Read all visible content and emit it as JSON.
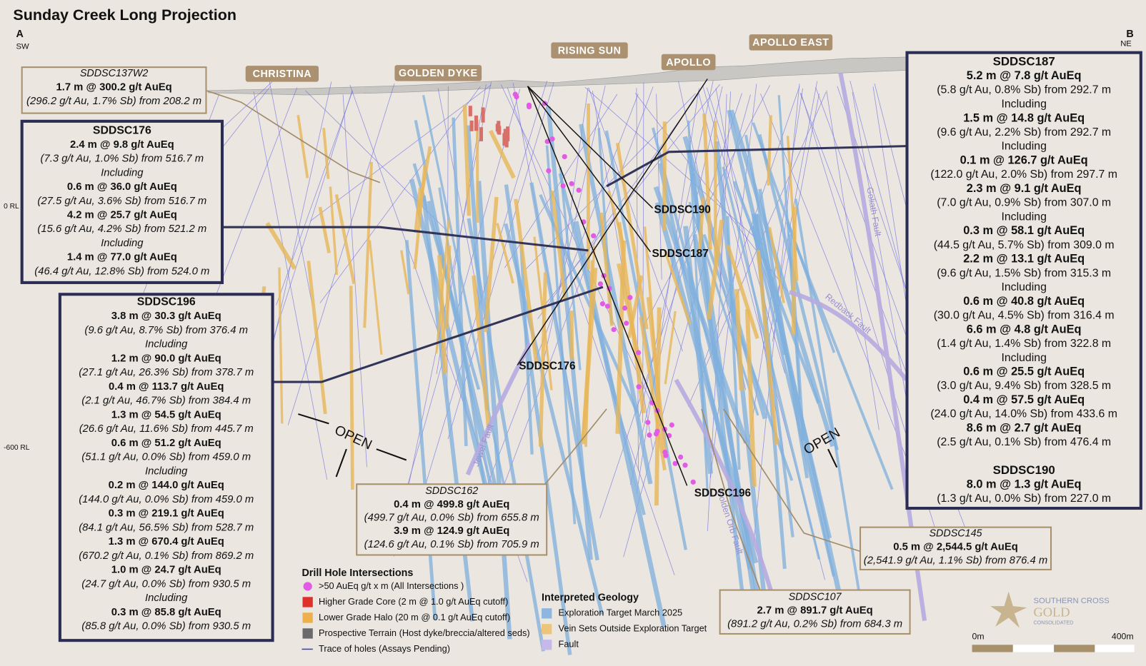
{
  "title": "Sunday Creek Long Projection",
  "section": {
    "start": "A",
    "start_dir": "SW",
    "end": "B",
    "end_dir": "NE"
  },
  "rl_labels": [
    "0 RL",
    "-600 RL"
  ],
  "prospects": [
    "CHRISTINA",
    "GOLDEN DYKE",
    "RISING SUN",
    "APOLLO",
    "APOLLO EAST"
  ],
  "hole_labels": [
    "SDDSC190",
    "SDDSC187",
    "SDDSC176",
    "SDDSC196"
  ],
  "faults": [
    "Goliath Fault",
    "Redback Fault",
    "Jewel Fault",
    "Golden Orb Fault"
  ],
  "open_labels": [
    "OPEN",
    "OPEN"
  ],
  "boxes": [
    {
      "entries": [
        {
          "hole": "SDDSC137W2",
          "rows": [
            {
              "interval": "1.7 m @ 300.2 g/t AuEq",
              "detail": "(296.2 g/t Au, 1.7% Sb) from 208.2 m"
            }
          ]
        }
      ]
    },
    {
      "entries": [
        {
          "hole": "SDDSC176",
          "rows": [
            {
              "interval": "2.4 m @ 9.8 g/t AuEq",
              "detail": "(7.3 g/t Au, 1.0% Sb) from 516.7 m"
            },
            {
              "note": "Including"
            },
            {
              "interval": "0.6 m @ 36.0 g/t AuEq",
              "detail": "(27.5 g/t Au, 3.6% Sb) from 516.7 m"
            },
            {
              "interval": "4.2 m @ 25.7 g/t AuEq",
              "detail": "(15.6 g/t Au, 4.2% Sb) from 521.2 m"
            },
            {
              "note": "Including"
            },
            {
              "interval": "1.4 m @ 77.0 g/t AuEq",
              "detail": "(46.4 g/t Au, 12.8% Sb) from 524.0 m"
            }
          ]
        }
      ]
    },
    {
      "entries": [
        {
          "hole": "SDDSC196",
          "rows": [
            {
              "interval": "3.8 m @ 30.3 g/t AuEq",
              "detail": "(9.6 g/t Au, 8.7% Sb) from 376.4 m"
            },
            {
              "note": "Including"
            },
            {
              "interval": "1.2 m @ 90.0 g/t AuEq",
              "detail": "(27.1 g/t Au, 26.3% Sb) from 378.7 m"
            },
            {
              "interval": "0.4 m @ 113.7 g/t AuEq",
              "detail": "(2.1 g/t Au, 46.7% Sb) from 384.4 m"
            },
            {
              "interval": "1.3 m @ 54.5 g/t AuEq",
              "detail": "(26.6 g/t Au, 11.6% Sb) from 445.7 m"
            },
            {
              "interval": "0.6 m @ 51.2 g/t AuEq",
              "detail": "(51.1 g/t Au, 0.0% Sb) from 459.0 m"
            },
            {
              "note": "Including"
            },
            {
              "interval": "0.2 m @ 144.0 g/t AuEq",
              "detail": "(144.0 g/t Au, 0.0% Sb) from 459.0 m"
            },
            {
              "interval": "0.3 m @ 219.1 g/t AuEq",
              "detail": "(84.1 g/t Au, 56.5% Sb) from 528.7 m"
            },
            {
              "interval": "1.3 m @ 670.4 g/t AuEq",
              "detail": "(670.2 g/t Au, 0.1% Sb) from 869.2 m"
            },
            {
              "interval": "1.0 m @ 24.7 g/t AuEq",
              "detail": "(24.7 g/t Au, 0.0% Sb) from 930.5 m"
            },
            {
              "note": "Including"
            },
            {
              "interval": "0.3 m @ 85.8 g/t AuEq",
              "detail": "(85.8 g/t Au, 0.0% Sb) from 930.5 m"
            }
          ]
        }
      ]
    },
    {
      "entries": [
        {
          "hole": "SDDSC162",
          "rows": [
            {
              "interval": "0.4 m @ 499.8 g/t AuEq",
              "detail": "(499.7 g/t Au, 0.0% Sb) from 655.8 m"
            },
            {
              "interval": "3.9 m @ 124.9 g/t AuEq",
              "detail": "(124.6 g/t Au, 0.1% Sb) from 705.9 m"
            }
          ]
        }
      ]
    },
    {
      "entries": [
        {
          "hole": "SDDSC145",
          "rows": [
            {
              "interval": "0.5 m @ 2,544.5 g/t AuEq",
              "detail": "(2,541.9 g/t Au, 1.1% Sb) from 876.4 m"
            }
          ]
        }
      ]
    },
    {
      "entries": [
        {
          "hole": "SDDSC107",
          "rows": [
            {
              "interval": "2.7 m @ 891.7 g/t AuEq",
              "detail": "(891.2 g/t Au, 0.2% Sb) from 684.3 m"
            }
          ]
        }
      ]
    },
    {
      "entries": [
        {
          "hole": "SDDSC187",
          "rows": [
            {
              "interval": "5.2 m @ 7.8 g/t AuEq",
              "detail": "(5.8 g/t Au, 0.8% Sb) from 292.7 m"
            },
            {
              "note": "Including"
            },
            {
              "interval": "1.5 m @ 14.8 g/t AuEq",
              "detail": "(9.6 g/t Au, 2.2% Sb) from 292.7 m"
            },
            {
              "note": "Including"
            },
            {
              "interval": "0.1 m @ 126.7 g/t AuEq",
              "detail": "(122.0 g/t Au, 2.0% Sb) from 297.7 m"
            },
            {
              "interval": "2.3 m @ 9.1 g/t AuEq",
              "detail": "(7.0 g/t Au, 0.9% Sb) from 307.0 m"
            },
            {
              "note": "Including"
            },
            {
              "interval": "0.3 m @ 58.1 g/t AuEq",
              "detail": "(44.5 g/t Au, 5.7% Sb) from 309.0 m"
            },
            {
              "interval": "2.2 m @ 13.1 g/t AuEq",
              "detail": "(9.6 g/t Au, 1.5% Sb) from 315.3 m"
            },
            {
              "note": "Including"
            },
            {
              "interval": "0.6 m @ 40.8 g/t AuEq",
              "detail": "(30.0 g/t Au, 4.5% Sb) from 316.4 m"
            },
            {
              "interval": "6.6 m @ 4.8 g/t AuEq",
              "detail": "(1.4 g/t Au, 1.4% Sb) from 322.8 m"
            },
            {
              "note": "Including"
            },
            {
              "interval": "0.6 m @ 25.5 g/t AuEq",
              "detail": "(3.0 g/t Au, 9.4% Sb) from 328.5 m"
            },
            {
              "interval": "0.4 m @ 57.5 g/t AuEq",
              "detail": "(24.0 g/t Au, 14.0% Sb) from 433.6 m"
            },
            {
              "interval": "8.6 m @ 2.7 g/t AuEq",
              "detail": "(2.5 g/t Au, 0.1% Sb) from 476.4 m"
            }
          ]
        },
        {
          "hole": "SDDSC190",
          "rows": [
            {
              "interval": "8.0 m @ 1.3 g/t AuEq",
              "detail": "(1.3 g/t Au, 0.0% Sb) from 227.0 m"
            }
          ]
        }
      ]
    }
  ],
  "legend_drill": {
    "title": "Drill Hole Intersections",
    "items": [
      ">50 AuEq g/t x m (All Intersections )",
      "Higher Grade Core (2 m @ 1.0 g/t AuEq cutoff)",
      "Lower Grade Halo (20 m @ 0.1 g/t AuEq cutoff)",
      "Prospective Terrain (Host dyke/breccia/altered seds)",
      "Trace of holes (Assays Pending)"
    ]
  },
  "legend_geology": {
    "title": "Interpreted Geology",
    "items": [
      "Exploration Target March 2025",
      "Vein Sets Outside Exploration Target",
      "Fault"
    ]
  },
  "logo": [
    "SOUTHERN CROSS",
    "GOLD",
    "CONSOLIDATED"
  ],
  "scale": [
    "0m",
    "400m"
  ]
}
